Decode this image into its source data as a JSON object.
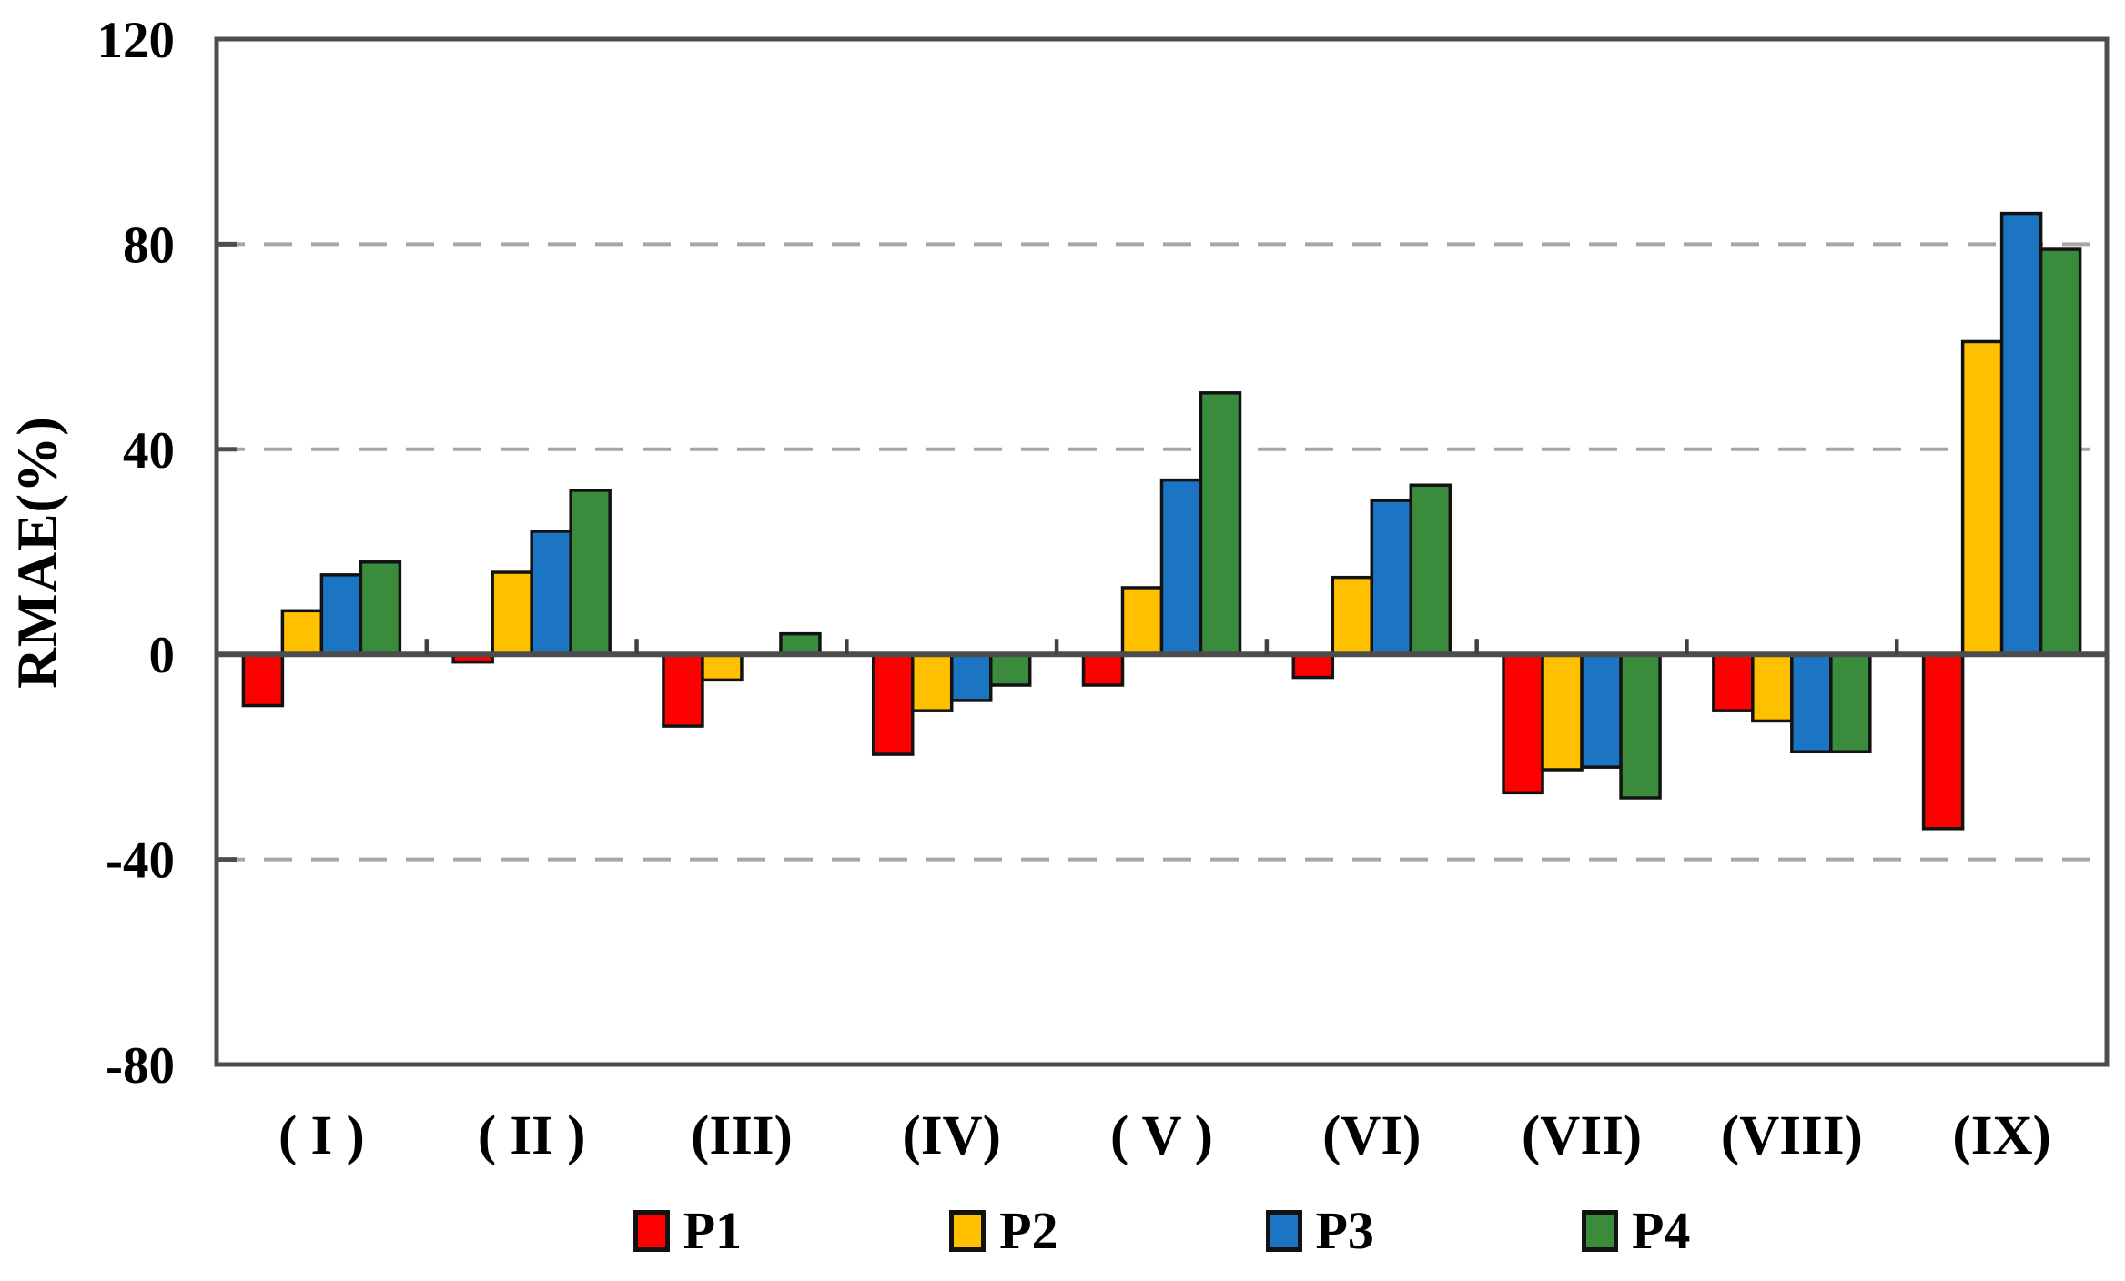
{
  "chart_data": {
    "type": "bar",
    "title": "",
    "ylabel": "RMAE(%)",
    "xlabel": "",
    "ylim": [
      -80,
      120
    ],
    "yticks": [
      120,
      80,
      40,
      0,
      -40,
      -80
    ],
    "gridline_values": [
      80,
      40,
      -40
    ],
    "grid": "horizontal-dashed",
    "legend_position": "bottom",
    "categories": [
      "( I )",
      "( II )",
      "(III)",
      "(IV)",
      "( V )",
      "(VI)",
      "(VII)",
      "(VIII)",
      "(IX)"
    ],
    "series": [
      {
        "name": "P1",
        "color": "#FF0000",
        "values": [
          -10,
          -1.5,
          -14,
          -19.5,
          -6,
          -4.5,
          -27,
          -11,
          -34
        ]
      },
      {
        "name": "P2",
        "color": "#FFC000",
        "values": [
          8.5,
          16,
          -5,
          -11,
          13,
          15,
          -22.5,
          -13,
          61
        ]
      },
      {
        "name": "P3",
        "color": "#1B75C2",
        "values": [
          15.5,
          24,
          0,
          -9,
          34,
          30,
          -22,
          -19,
          86
        ]
      },
      {
        "name": "P4",
        "color": "#3A8C3C",
        "values": [
          18,
          32,
          4,
          -6,
          51,
          33,
          -28,
          -19,
          79
        ]
      }
    ],
    "style_colors": {
      "frame": "#4D4D4D",
      "zero_line": "#4D4D4D",
      "gridline": "#A6A6A6",
      "bar_outline": "#121212",
      "tick_mark": "#404040"
    }
  }
}
